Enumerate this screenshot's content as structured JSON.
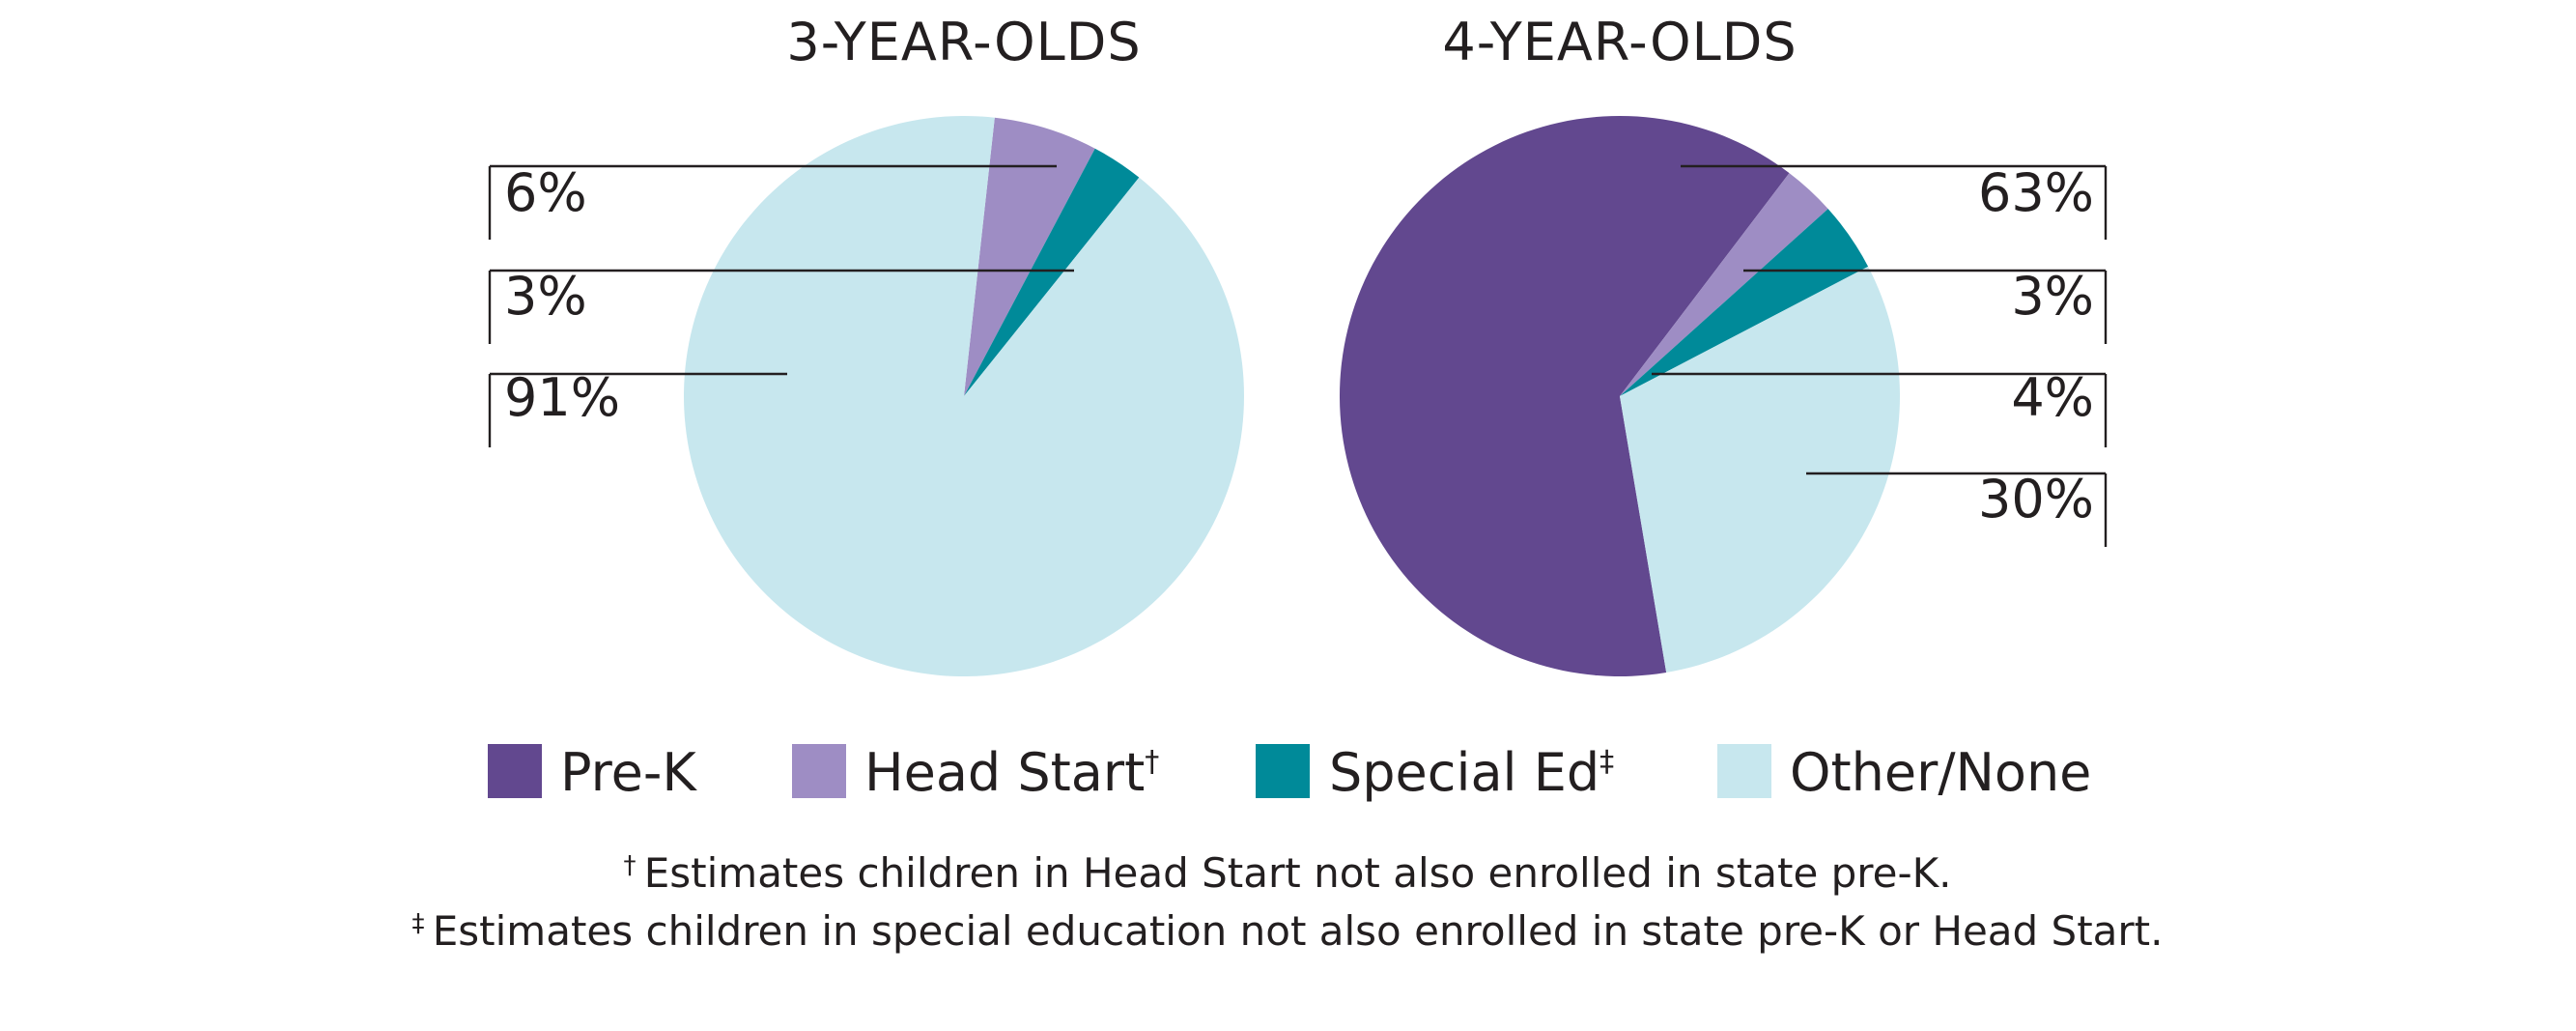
{
  "colors": {
    "Pre-K": "#62488f",
    "Head Start": "#9e8dc4",
    "Special Ed": "#008a99",
    "Other/None": "#c7e7ee",
    "text": "#231f20"
  },
  "legend": [
    {
      "key": "Pre-K",
      "label": "Pre-K",
      "mark": ""
    },
    {
      "key": "Head Start",
      "label": "Head Start",
      "mark": "†"
    },
    {
      "key": "Special Ed",
      "label": "Special Ed",
      "mark": "‡"
    },
    {
      "key": "Other/None",
      "label": "Other/None",
      "mark": ""
    }
  ],
  "chart_data": [
    {
      "type": "pie",
      "title": "3-YEAR-OLDS",
      "slices": [
        {
          "category": "Head Start",
          "value": 6,
          "label": "6%"
        },
        {
          "category": "Special Ed",
          "value": 3,
          "label": "3%"
        },
        {
          "category": "Other/None",
          "value": 91,
          "label": "91%"
        }
      ]
    },
    {
      "type": "pie",
      "title": "4-YEAR-OLDS",
      "slices": [
        {
          "category": "Pre-K",
          "value": 63,
          "label": "63%"
        },
        {
          "category": "Head Start",
          "value": 3,
          "label": "3%"
        },
        {
          "category": "Special Ed",
          "value": 4,
          "label": "4%"
        },
        {
          "category": "Other/None",
          "value": 30,
          "label": "30%"
        }
      ]
    }
  ],
  "footnotes": [
    {
      "mark": "†",
      "text": "Estimates children in Head Start not also enrolled in state pre-K."
    },
    {
      "mark": "‡",
      "text": "Estimates children in special education not also enrolled in state pre-K or Head Start."
    }
  ]
}
